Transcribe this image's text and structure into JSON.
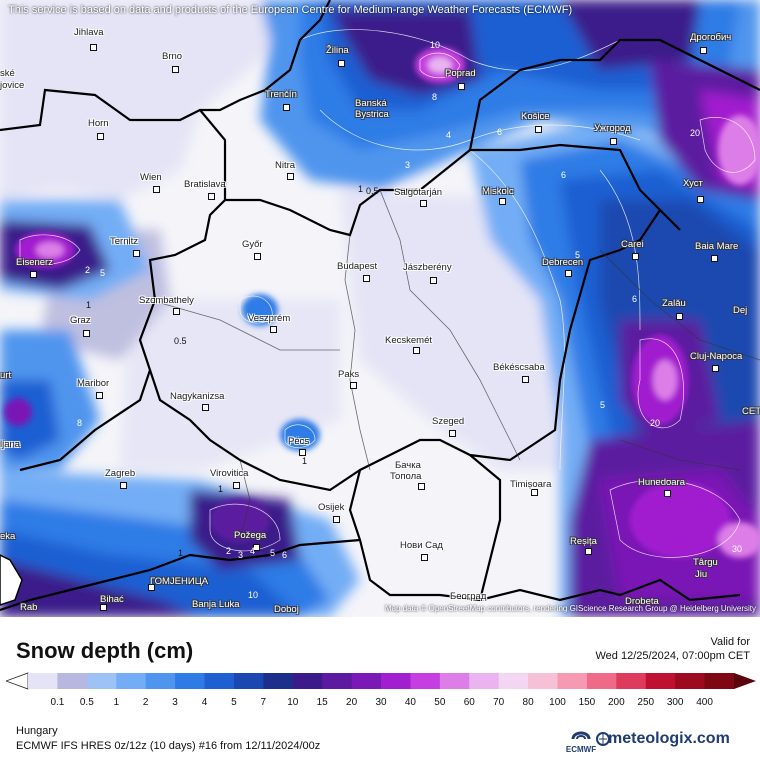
{
  "map": {
    "disclaimer": "This service is based on data and products of the European Centre for Medium-range Weather Forecasts (ECMWF)",
    "attribution": "Map data © OpenStreetMap contributors, rendering GIScience Research Group @ Heidelberg University",
    "cities": [
      {
        "name": "Jihlava"
      },
      {
        "name": "Brno"
      },
      {
        "name": "Žilina"
      },
      {
        "name": "Poprad"
      },
      {
        "name": "Дрогобич"
      },
      {
        "name": "ské"
      },
      {
        "name": "jovice"
      },
      {
        "name": "Trenčín"
      },
      {
        "name": "Banská"
      },
      {
        "name": "Bystrica"
      },
      {
        "name": "Košice"
      },
      {
        "name": "Ужгород"
      },
      {
        "name": "Horn"
      },
      {
        "name": "Nitra"
      },
      {
        "name": "Wien"
      },
      {
        "name": "Bratislava"
      },
      {
        "name": "Salgótarján"
      },
      {
        "name": "Miskolc"
      },
      {
        "name": "Хуст"
      },
      {
        "name": "Ternitz"
      },
      {
        "name": "Győr"
      },
      {
        "name": "Eisenerz"
      },
      {
        "name": "Budapest"
      },
      {
        "name": "Jászberény"
      },
      {
        "name": "Debrecen"
      },
      {
        "name": "Carei"
      },
      {
        "name": "Baia Mare"
      },
      {
        "name": "Szombathely"
      },
      {
        "name": "Graz"
      },
      {
        "name": "Veszprém"
      },
      {
        "name": "Zalău"
      },
      {
        "name": "Dej"
      },
      {
        "name": "Kecskemét"
      },
      {
        "name": "Cluj-Napoca"
      },
      {
        "name": "urt"
      },
      {
        "name": "Maribor"
      },
      {
        "name": "Paks"
      },
      {
        "name": "Békéscsaba"
      },
      {
        "name": "Nagykanizsa"
      },
      {
        "name": "Szeged"
      },
      {
        "name": "Pécs"
      },
      {
        "name": "ljana"
      },
      {
        "name": "Zagreb"
      },
      {
        "name": "Virovitica"
      },
      {
        "name": "Бачка"
      },
      {
        "name": "Топола"
      },
      {
        "name": "Timișoara"
      },
      {
        "name": "Hunedoara"
      },
      {
        "name": "Osijek"
      },
      {
        "name": "Požega"
      },
      {
        "name": "Нови Сад"
      },
      {
        "name": "Reșița"
      },
      {
        "name": "Târgu"
      },
      {
        "name": "Jiu"
      },
      {
        "name": "eka"
      },
      {
        "name": "ГОМЈЕНИЦА"
      },
      {
        "name": "Bihać"
      },
      {
        "name": "Banja Luka"
      },
      {
        "name": "Doboj"
      },
      {
        "name": "Београд"
      },
      {
        "name": "Drobeta"
      },
      {
        "name": "Rab"
      },
      {
        "name": "CET"
      }
    ],
    "contour_labels": [
      "10",
      "8",
      "6",
      "3",
      "4",
      "6",
      "5",
      "0.5",
      "1",
      "2",
      "5",
      "6",
      "1",
      "0.5",
      "8",
      "1",
      "1",
      "1",
      "2",
      "3",
      "4",
      "5",
      "6",
      "5",
      "10",
      "20",
      "20",
      "30"
    ]
  },
  "header": {
    "title": "Snow depth (cm)",
    "valid_for": "Valid for",
    "valid_time": "Wed 12/25/2024, 07:00pm CET"
  },
  "legend": {
    "ticks": [
      "0.1",
      "0.5",
      "1",
      "2",
      "3",
      "4",
      "5",
      "7",
      "10",
      "15",
      "20",
      "30",
      "40",
      "50",
      "60",
      "70",
      "80",
      "100",
      "150",
      "200",
      "250",
      "300",
      "400"
    ],
    "colors": [
      "#e4e4f6",
      "#b7b7df",
      "#9ec2f5",
      "#73adf5",
      "#4f95ee",
      "#2f7be6",
      "#1e5fd2",
      "#1a48b0",
      "#1c2f8b",
      "#3b1a8a",
      "#5b1aa0",
      "#7a19b5",
      "#a21fcf",
      "#c53ee0",
      "#dd7ee8",
      "#e9b4ef",
      "#f3d6f2",
      "#f6c0d6",
      "#f59ab2",
      "#ee6a88",
      "#dd3a5e",
      "#c01032",
      "#9d0a1f",
      "#7e0714",
      "#5a040c"
    ]
  },
  "footer": {
    "region": "Hungary",
    "model": "ECMWF IFS HRES 0z/12z (10 days) #16 from  12/11/2024/00z",
    "ecmwf_logo": "ECMWF",
    "brand": "meteologix.com",
    "brand_icon": "meteologix-globe-icon"
  }
}
